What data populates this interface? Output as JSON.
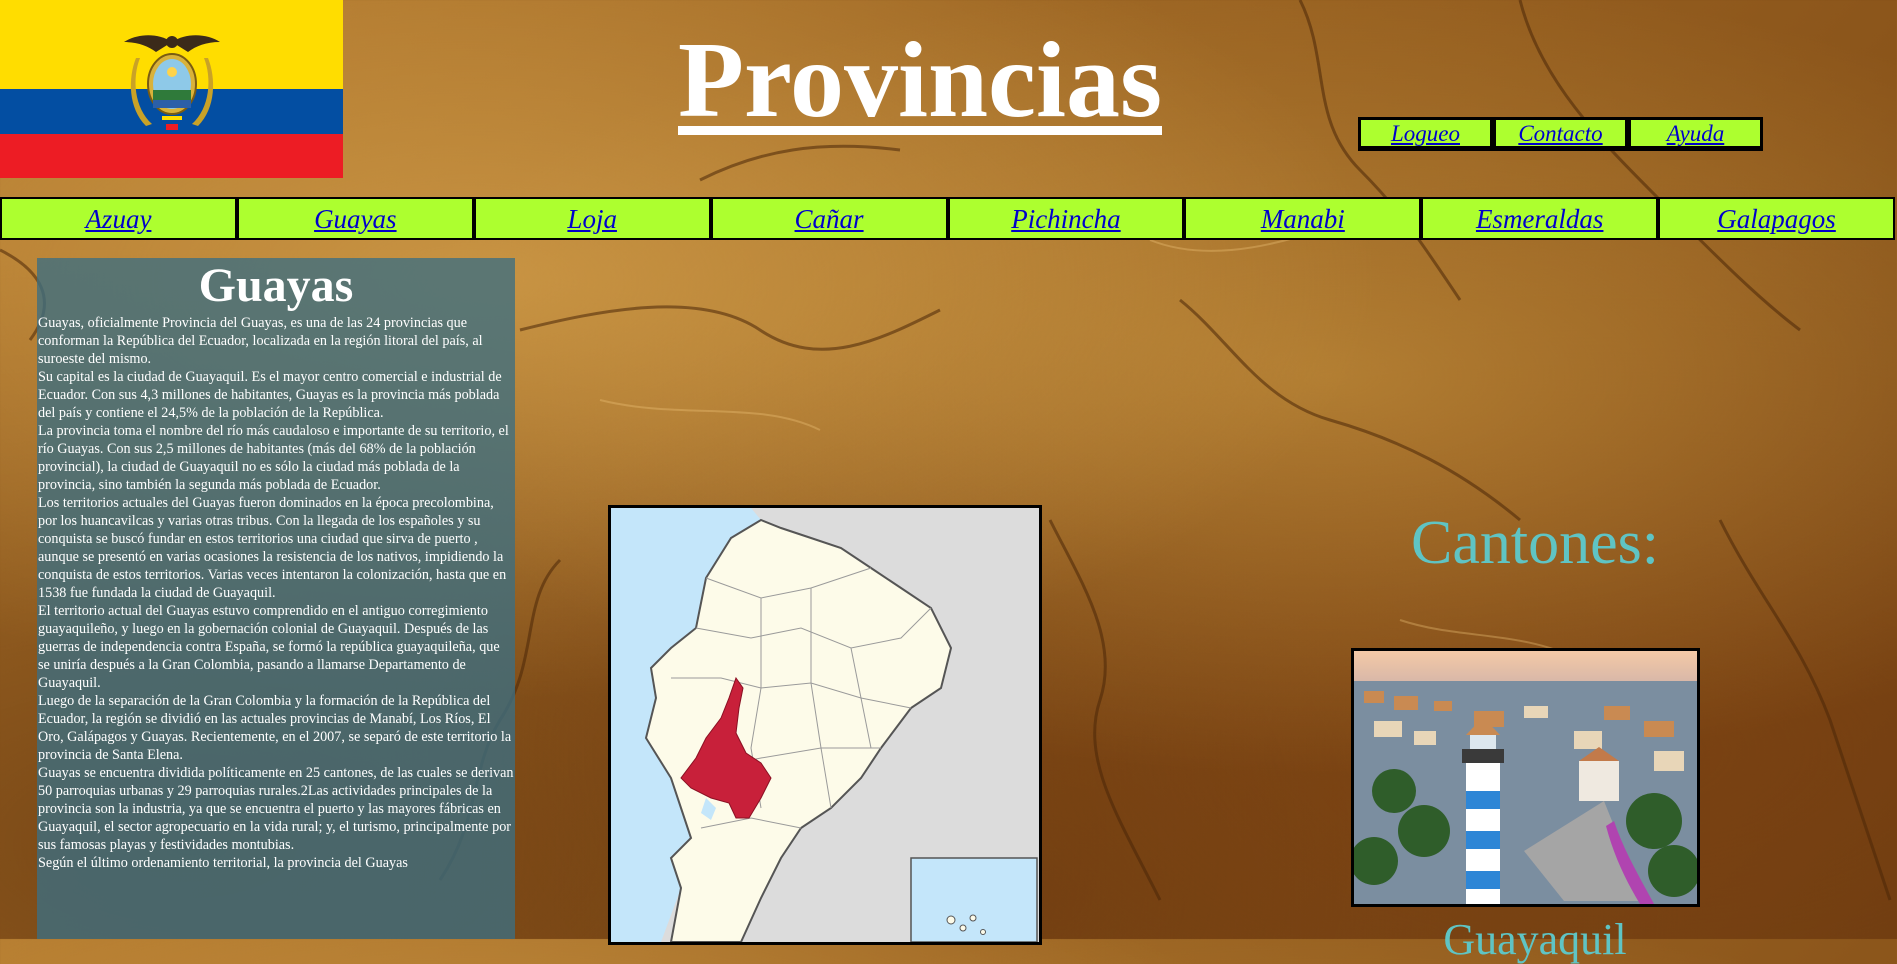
{
  "header": {
    "title": "Provincias",
    "flag_icon": "ecuador-flag-icon"
  },
  "top_links": [
    {
      "label": "Logueo"
    },
    {
      "label": "Contacto"
    },
    {
      "label": "Ayuda"
    }
  ],
  "provinces_nav": [
    {
      "label": "Azuay"
    },
    {
      "label": "Guayas"
    },
    {
      "label": "Loja"
    },
    {
      "label": "Cañar"
    },
    {
      "label": "Pichincha"
    },
    {
      "label": "Manabi"
    },
    {
      "label": "Esmeraldas"
    },
    {
      "label": "Galapagos"
    }
  ],
  "info": {
    "heading": "Guayas",
    "paragraphs": [
      "Guayas, oficialmente Provincia del Guayas, es una de las 24 provincias que conforman la República del Ecuador, localizada en la región litoral del país, al suroeste del mismo.",
      "Su capital es la ciudad de Guayaquil. Es el mayor centro comercial e industrial de Ecuador. Con sus 4,3 millones de habitantes, Guayas es la provincia más poblada del país y contiene el 24,5% de la población de la República.",
      "La provincia toma el nombre del río más caudaloso e importante de su territorio, el río Guayas. Con sus 2,5 millones de habitantes (más del 68% de la población provincial), la ciudad de Guayaquil no es sólo la ciudad más poblada de la provincia, sino también la segunda más poblada de Ecuador.",
      "Los territorios actuales del Guayas fueron dominados en la época precolombina, por los huancavilcas y varias otras tribus. Con la llegada de los españoles y su conquista se buscó fundar en estos territorios una ciudad que sirva de puerto , aunque se presentó en varias ocasiones la resistencia de los nativos, impidiendo la conquista de estos territorios. Varias veces intentaron la colonización, hasta que en 1538 fue fundada la ciudad de Guayaquil.",
      "El territorio actual del Guayas estuvo comprendido en el antiguo corregimiento guayaquileño, y luego en la gobernación colonial de Guayaquil. Después de las guerras de independencia contra España, se formó la república guayaquileña, que se uniría después a la Gran Colombia, pasando a llamarse Departamento de Guayaquil.",
      "Luego de la separación de la Gran Colombia y la formación de la República del Ecuador, la región se dividió en las actuales provincias de Manabí, Los Ríos, El Oro, Galápagos y Guayas. Recientemente, en el 2007, se separó de este territorio la provincia de Santa Elena.",
      "Guayas se encuentra dividida políticamente en 25 cantones, de las cuales se derivan 50 parroquias urbanas y 29 parroquias rurales.2Las actividades principales de la provincia son la industria, ya que se encuentra el puerto y las mayores fábricas en Guayaquil, el sector agropecuario en la vida rural; y, el turismo, principalmente por sus famosas playas y festividades montubias.",
      "Según el último ordenamiento territorial, la provincia del Guayas"
    ]
  },
  "map": {
    "icon": "ecuador-map-guayas-highlighted",
    "highlight_color": "#c8203a",
    "land_color": "#fdfbe9",
    "sea_color": "#c4e6fa"
  },
  "cantones": {
    "heading": "Cantones:",
    "photo_icon": "guayaquil-lighthouse-photo",
    "next_caption": "Guayaquil"
  }
}
